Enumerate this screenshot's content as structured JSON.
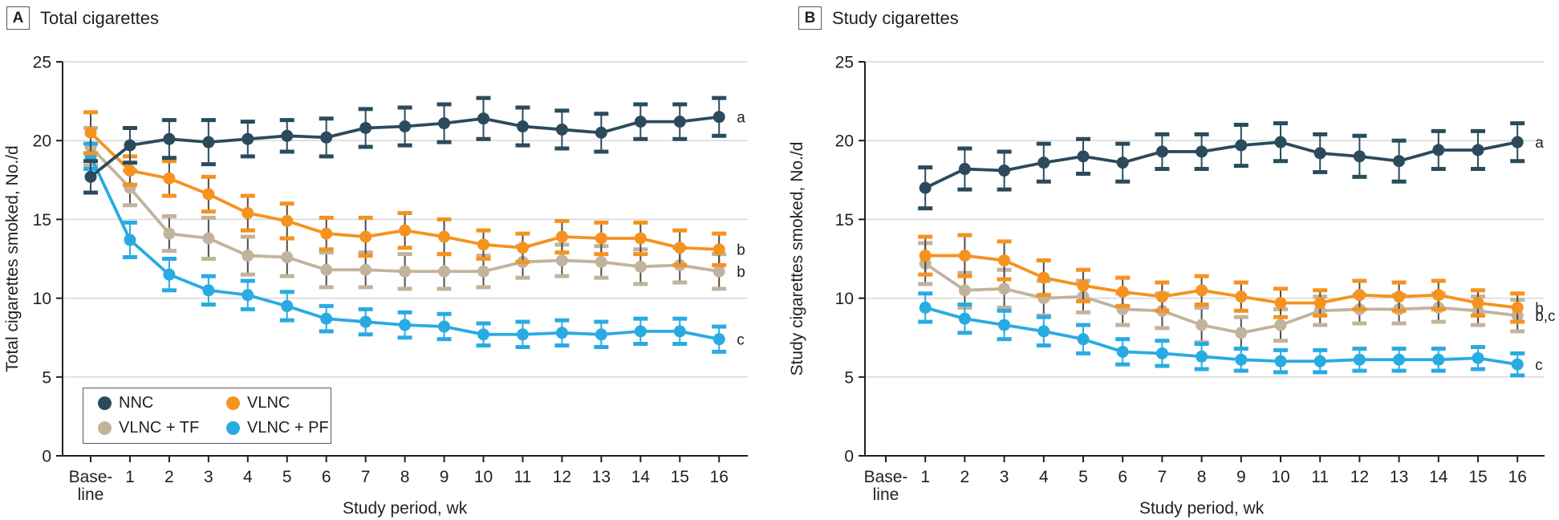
{
  "colors": {
    "navy": "#2b4b5c",
    "orange": "#f6921e",
    "tan": "#c2b39c",
    "blue": "#29abe2",
    "grid": "#d9d9d9",
    "axis": "#231f20",
    "dark_stem": "#4d4d4d",
    "legend_border": "#58595b"
  },
  "chart_data": [
    {
      "type": "line",
      "panel_letter": "A",
      "title": "Total cigarettes",
      "ylabel": "Total cigarettes smoked, No./d",
      "xlabel": "Study period, wk",
      "ylim": [
        0,
        25
      ],
      "yticks": [
        0,
        5,
        10,
        15,
        20,
        25
      ],
      "grid": "horizontal",
      "legend_position": "inside-bottom-left",
      "categories": [
        "Base-\nline",
        "1",
        "2",
        "3",
        "4",
        "5",
        "6",
        "7",
        "8",
        "9",
        "10",
        "11",
        "12",
        "13",
        "14",
        "15",
        "16"
      ],
      "series": [
        {
          "name": "NNC",
          "color": "#2b4b5c",
          "stem_color": "#2b4b5c",
          "end_label": "a",
          "values": [
            17.7,
            19.7,
            20.1,
            19.9,
            20.1,
            20.3,
            20.2,
            20.8,
            20.9,
            21.1,
            21.4,
            20.9,
            20.7,
            20.5,
            21.2,
            21.2,
            21.5
          ],
          "err": [
            1.0,
            1.1,
            1.2,
            1.4,
            1.1,
            1.0,
            1.2,
            1.2,
            1.2,
            1.2,
            1.3,
            1.2,
            1.2,
            1.2,
            1.1,
            1.1,
            1.2
          ]
        },
        {
          "name": "VLNC",
          "color": "#f6921e",
          "stem_color": "#4d4d4d",
          "end_label": "b",
          "values": [
            20.5,
            18.1,
            17.6,
            16.6,
            15.4,
            14.9,
            14.1,
            13.9,
            14.3,
            13.9,
            13.4,
            13.2,
            13.9,
            13.8,
            13.8,
            13.2,
            13.1
          ],
          "err": [
            1.3,
            0.9,
            1.1,
            1.1,
            1.1,
            1.1,
            1.0,
            1.2,
            1.1,
            1.1,
            0.9,
            0.9,
            1.0,
            1.0,
            1.0,
            1.1,
            1.0
          ]
        },
        {
          "name": "VLNC + TF",
          "color": "#c2b39c",
          "stem_color": "#4d4d4d",
          "end_label": "b",
          "values": [
            19.6,
            17.0,
            14.1,
            13.8,
            12.7,
            12.6,
            11.8,
            11.8,
            11.7,
            11.7,
            11.7,
            12.3,
            12.4,
            12.3,
            12.0,
            12.1,
            11.7
          ],
          "err": [
            1.2,
            1.1,
            1.1,
            1.3,
            1.2,
            1.2,
            1.1,
            1.1,
            1.1,
            1.1,
            1.0,
            1.0,
            1.0,
            1.0,
            1.1,
            1.1,
            1.1
          ]
        },
        {
          "name": "VLNC + PF",
          "color": "#29abe2",
          "stem_color": "#29abe2",
          "end_label": "c",
          "values": [
            19.0,
            13.7,
            11.5,
            10.5,
            10.2,
            9.5,
            8.7,
            8.5,
            8.3,
            8.2,
            7.7,
            7.7,
            7.8,
            7.7,
            7.9,
            7.9,
            7.4
          ],
          "err": [
            0.8,
            1.1,
            1.0,
            0.9,
            0.9,
            0.9,
            0.8,
            0.8,
            0.8,
            0.8,
            0.7,
            0.8,
            0.8,
            0.8,
            0.8,
            0.8,
            0.8
          ]
        }
      ]
    },
    {
      "type": "line",
      "panel_letter": "B",
      "title": "Study cigarettes",
      "ylabel": "Study cigarettes smoked, No./d",
      "xlabel": "Study period, wk",
      "ylim": [
        0,
        25
      ],
      "yticks": [
        0,
        5,
        10,
        15,
        20,
        25
      ],
      "grid": "horizontal",
      "legend_position": "none",
      "categories": [
        "Base-\nline",
        "1",
        "2",
        "3",
        "4",
        "5",
        "6",
        "7",
        "8",
        "9",
        "10",
        "11",
        "12",
        "13",
        "14",
        "15",
        "16"
      ],
      "series": [
        {
          "name": "NNC",
          "color": "#2b4b5c",
          "stem_color": "#2b4b5c",
          "end_label": "a",
          "values": [
            null,
            17.0,
            18.2,
            18.1,
            18.6,
            19.0,
            18.6,
            19.3,
            19.3,
            19.7,
            19.9,
            19.2,
            19.0,
            18.7,
            19.4,
            19.4,
            19.9
          ],
          "err": [
            null,
            1.3,
            1.3,
            1.2,
            1.2,
            1.1,
            1.2,
            1.1,
            1.1,
            1.3,
            1.2,
            1.2,
            1.3,
            1.3,
            1.2,
            1.2,
            1.2
          ]
        },
        {
          "name": "VLNC",
          "color": "#f6921e",
          "stem_color": "#4d4d4d",
          "end_label": "b",
          "values": [
            null,
            12.7,
            12.7,
            12.4,
            11.3,
            10.8,
            10.4,
            10.1,
            10.5,
            10.1,
            9.7,
            9.7,
            10.2,
            10.1,
            10.2,
            9.7,
            9.4
          ],
          "err": [
            null,
            1.2,
            1.3,
            1.2,
            1.1,
            1.0,
            0.9,
            0.9,
            0.9,
            0.9,
            0.9,
            0.8,
            0.9,
            0.9,
            0.9,
            0.8,
            0.9
          ]
        },
        {
          "name": "VLNC + TF",
          "color": "#c2b39c",
          "stem_color": "#4d4d4d",
          "end_label": "b,c",
          "values": [
            null,
            12.2,
            10.5,
            10.6,
            10.0,
            10.1,
            9.3,
            9.2,
            8.3,
            7.8,
            8.3,
            9.2,
            9.3,
            9.3,
            9.4,
            9.2,
            8.9
          ],
          "err": [
            null,
            1.3,
            1.1,
            1.2,
            1.1,
            1.0,
            1.0,
            1.1,
            1.1,
            1.0,
            1.0,
            0.9,
            0.9,
            0.9,
            0.9,
            0.9,
            1.0
          ]
        },
        {
          "name": "VLNC + PF",
          "color": "#29abe2",
          "stem_color": "#29abe2",
          "end_label": "c",
          "values": [
            null,
            9.4,
            8.7,
            8.3,
            7.9,
            7.4,
            6.6,
            6.5,
            6.3,
            6.1,
            6.0,
            6.0,
            6.1,
            6.1,
            6.1,
            6.2,
            5.8
          ],
          "err": [
            null,
            0.9,
            0.9,
            0.9,
            0.9,
            0.9,
            0.8,
            0.8,
            0.8,
            0.7,
            0.7,
            0.7,
            0.7,
            0.7,
            0.7,
            0.7,
            0.7
          ]
        }
      ]
    }
  ]
}
